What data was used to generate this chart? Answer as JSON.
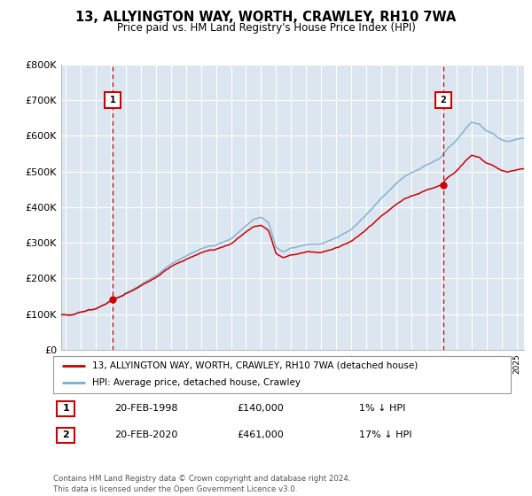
{
  "title": "13, ALLYINGTON WAY, WORTH, CRAWLEY, RH10 7WA",
  "subtitle": "Price paid vs. HM Land Registry's House Price Index (HPI)",
  "ylim": [
    0,
    800000
  ],
  "yticks": [
    0,
    100000,
    200000,
    300000,
    400000,
    500000,
    600000,
    700000,
    800000
  ],
  "ytick_labels": [
    "£0",
    "£100K",
    "£200K",
    "£300K",
    "£400K",
    "£500K",
    "£600K",
    "£700K",
    "£800K"
  ],
  "xlim_start": 1994.7,
  "xlim_end": 2025.5,
  "plot_bg_color": "#dce6f1",
  "grid_color": "#ffffff",
  "sale1_year": 1998.13,
  "sale1_price": 140000,
  "sale2_year": 2020.13,
  "sale2_price": 461000,
  "legend_property": "13, ALLYINGTON WAY, WORTH, CRAWLEY, RH10 7WA (detached house)",
  "legend_hpi": "HPI: Average price, detached house, Crawley",
  "note1_label": "1",
  "note1_date": "20-FEB-1998",
  "note1_price": "£140,000",
  "note1_hpi": "1% ↓ HPI",
  "note2_label": "2",
  "note2_date": "20-FEB-2020",
  "note2_price": "£461,000",
  "note2_hpi": "17% ↓ HPI",
  "footer": "Contains HM Land Registry data © Crown copyright and database right 2024.\nThis data is licensed under the Open Government Licence v3.0.",
  "red_color": "#cc0000",
  "blue_color": "#7aadcf",
  "marker_box_color": "#cc0000"
}
